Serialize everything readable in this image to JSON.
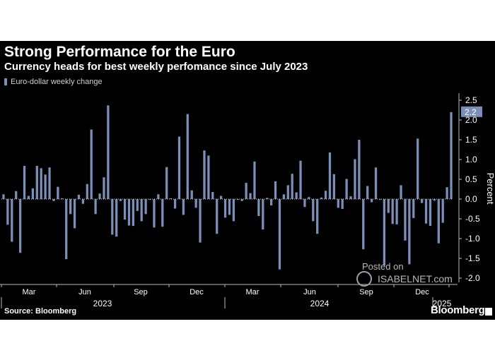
{
  "header": {
    "title": "Strong Performance for the Euro",
    "subtitle": "Currency heads for best weekly perfomance since July 2023"
  },
  "footer": {
    "source": "Source: Bloomberg",
    "brand": "Bloomberg"
  },
  "watermark": {
    "line1": "Posted on",
    "line2": "ISABELNET.com"
  },
  "colors": {
    "background": "#000000",
    "bar": "#7b8fb8",
    "text": "#ffffff"
  },
  "chart_data": {
    "type": "bar",
    "title": "Strong Performance for the Euro",
    "subtitle": "Currency heads for best weekly perfomance since July 2023",
    "xlabel": "",
    "ylabel": "Percent",
    "ylim": [
      -2.0,
      2.5
    ],
    "yticks": [
      "2.5",
      "2.0",
      "1.5",
      "1.0",
      "0.5",
      "0.0",
      "-0.5",
      "-1.0",
      "-1.5",
      "-2.0"
    ],
    "ytick_values": [
      2.5,
      2.0,
      1.5,
      1.0,
      0.5,
      0.0,
      -0.5,
      -1.0,
      -1.5,
      -2.0
    ],
    "month_labels": [
      "Mar",
      "Jun",
      "Sep",
      "Dec",
      "Mar",
      "Jun",
      "Sep",
      "Dec"
    ],
    "year_labels": [
      "2023",
      "2024",
      "2025"
    ],
    "legend": {
      "position": "top-left"
    },
    "grid": false,
    "last_value_label": "2.2",
    "series": [
      {
        "name": "Euro-dollar weekly change",
        "values": [
          0.12,
          -0.65,
          -1.08,
          0.2,
          -1.36,
          0.84,
          0.08,
          0.27,
          0.84,
          0.78,
          0.62,
          0.8,
          -0.05,
          0.31,
          0.02,
          -1.52,
          -0.38,
          -0.74,
          0.11,
          -0.12,
          0.38,
          1.76,
          -0.38,
          0.14,
          0.55,
          2.37,
          -0.9,
          -0.95,
          -0.05,
          -0.52,
          -0.67,
          -0.68,
          -0.3,
          -0.56,
          -0.38,
          -0.02,
          -0.72,
          0.12,
          -0.7,
          0.81,
          0.02,
          -0.24,
          1.58,
          -0.4,
          2.15,
          0.22,
          -0.22,
          -1.1,
          1.23,
          1.1,
          0.18,
          -0.88,
          0.08,
          -0.47,
          -0.4,
          -0.56,
          -0.02,
          -0.05,
          0.41,
          0.15,
          0.95,
          -0.43,
          -0.77,
          0.03,
          -0.16,
          0.45,
          -1.78,
          0.12,
          0.35,
          0.64,
          0.17,
          0.97,
          -0.2,
          0.05,
          -0.56,
          -0.88,
          0.04,
          0.21,
          1.18,
          0.63,
          -0.22,
          -0.25,
          0.51,
          0.07,
          1.01,
          1.5,
          -1.27,
          0.33,
          -0.08,
          0.8,
          -0.02,
          -1.68,
          -0.35,
          -0.63,
          -0.64,
          0.35,
          -1.05,
          -1.65,
          -0.48,
          1.53,
          -0.1,
          -0.62,
          -0.68,
          -0.04,
          -1.12,
          -0.6,
          0.3,
          2.2
        ]
      }
    ]
  }
}
